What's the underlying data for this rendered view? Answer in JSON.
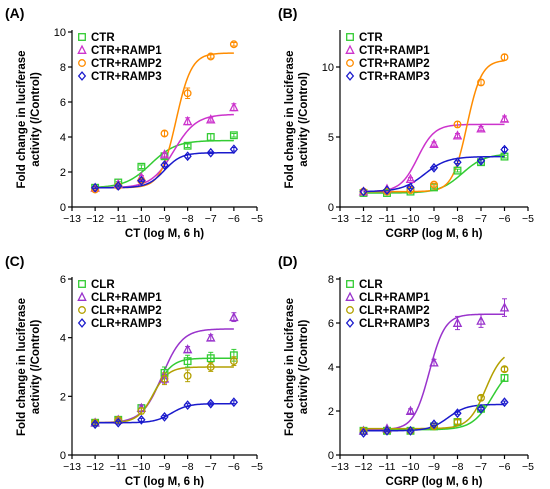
{
  "chart_data": [
    {
      "panel": "(A)",
      "type": "scatter",
      "xlabel": "CT (log M, 6 h)",
      "ylabel_lines": [
        "Fold change in luciferase",
        "activity (/Control)"
      ],
      "xlim": [
        -13,
        -5
      ],
      "ylim": [
        0,
        10
      ],
      "xticks": [
        -13,
        -12,
        -11,
        -10,
        -9,
        -8,
        -7,
        -6,
        -5
      ],
      "yticks": [
        0,
        2,
        4,
        6,
        8,
        10
      ],
      "x": [
        -12,
        -11,
        -10,
        -9,
        -8,
        -7,
        -6
      ],
      "legend_position": "top-left",
      "series": [
        {
          "name": "CTR",
          "marker": "square",
          "color": "#33cc33",
          "values": [
            1.1,
            1.4,
            2.3,
            2.9,
            3.5,
            4.0,
            4.1
          ],
          "error": [
            0.05,
            0.05,
            0.1,
            0.15,
            0.1,
            0.2,
            0.1
          ],
          "fit": {
            "bottom": 1.1,
            "top": 3.8,
            "ec50": -9.6,
            "hill": 0.8
          }
        },
        {
          "name": "CTR+RAMP1",
          "marker": "triangle-up",
          "color": "#cc33cc",
          "values": [
            1.1,
            1.3,
            1.7,
            3.0,
            4.9,
            5.0,
            5.7
          ],
          "error": [
            0.05,
            0.05,
            0.1,
            0.1,
            0.2,
            0.1,
            0.2
          ],
          "fit": {
            "bottom": 1.1,
            "top": 5.3,
            "ec50": -8.6,
            "hill": 0.9
          }
        },
        {
          "name": "CTR+RAMP2",
          "marker": "circle",
          "color": "#ff8c00",
          "values": [
            1.0,
            1.2,
            1.5,
            4.2,
            6.5,
            8.6,
            9.3
          ],
          "error": [
            0.05,
            0.05,
            0.1,
            0.15,
            0.3,
            0.1,
            0.1
          ],
          "fit": {
            "bottom": 1.1,
            "top": 8.8,
            "ec50": -8.5,
            "hill": 1.3
          }
        },
        {
          "name": "CTR+RAMP3",
          "marker": "diamond",
          "color": "#1a1acc",
          "values": [
            1.1,
            1.2,
            1.5,
            2.4,
            2.9,
            3.1,
            3.3
          ],
          "error": [
            0.05,
            0.05,
            0.05,
            0.1,
            0.1,
            0.05,
            0.1
          ],
          "fit": {
            "bottom": 1.1,
            "top": 3.1,
            "ec50": -9.0,
            "hill": 1.2
          }
        }
      ]
    },
    {
      "panel": "(B)",
      "type": "scatter",
      "xlabel": "CGRP (log M, 6 h)",
      "ylabel_lines": [
        "Fold change in luciferase",
        "activity (/Control)"
      ],
      "xlim": [
        -13,
        -5
      ],
      "ylim": [
        0,
        12.5
      ],
      "xticks": [
        -13,
        -12,
        -11,
        -10,
        -9,
        -8,
        -7,
        -6,
        -5
      ],
      "yticks": [
        0,
        5,
        10
      ],
      "x": [
        -12,
        -11,
        -10,
        -9,
        -8,
        -7,
        -6
      ],
      "legend_position": "top-left",
      "series": [
        {
          "name": "CTR",
          "marker": "square",
          "color": "#33cc33",
          "values": [
            1.0,
            1.0,
            1.1,
            1.4,
            2.6,
            3.2,
            3.6
          ],
          "error": [
            0.05,
            0.05,
            0.05,
            0.1,
            0.1,
            0.2,
            0.1
          ],
          "fit": {
            "bottom": 1.0,
            "top": 3.8,
            "ec50": -7.8,
            "hill": 0.9
          }
        },
        {
          "name": "CTR+RAMP1",
          "marker": "triangle-up",
          "color": "#cc33cc",
          "values": [
            1.1,
            1.3,
            2.0,
            4.5,
            5.1,
            5.6,
            6.3
          ],
          "error": [
            0.05,
            0.05,
            0.1,
            0.15,
            0.15,
            0.15,
            0.2
          ],
          "fit": {
            "bottom": 1.1,
            "top": 5.9,
            "ec50": -9.7,
            "hill": 1.2
          }
        },
        {
          "name": "CTR+RAMP2",
          "marker": "circle",
          "color": "#ff8c00",
          "values": [
            1.1,
            1.1,
            1.2,
            1.6,
            5.9,
            8.9,
            10.7
          ],
          "error": [
            0.05,
            0.05,
            0.05,
            0.1,
            0.2,
            0.2,
            0.2
          ],
          "fit": {
            "bottom": 1.1,
            "top": 10.5,
            "ec50": -7.6,
            "hill": 1.4
          }
        },
        {
          "name": "CTR+RAMP3",
          "marker": "diamond",
          "color": "#1a1acc",
          "values": [
            1.1,
            1.2,
            1.4,
            2.8,
            3.2,
            3.3,
            4.1
          ],
          "error": [
            0.05,
            0.05,
            0.1,
            0.1,
            0.1,
            0.1,
            0.15
          ],
          "fit": {
            "bottom": 1.1,
            "top": 3.6,
            "ec50": -9.4,
            "hill": 0.9
          }
        }
      ]
    },
    {
      "panel": "(C)",
      "type": "scatter",
      "xlabel": "CT (log M, 6 h)",
      "ylabel_lines": [
        "Fold change in luciferase",
        "activity (/Control)"
      ],
      "xlim": [
        -13,
        -5
      ],
      "ylim": [
        0,
        6
      ],
      "xticks": [
        -13,
        -12,
        -11,
        -10,
        -9,
        -8,
        -7,
        -6,
        -5
      ],
      "yticks": [
        0,
        2,
        4,
        6
      ],
      "x": [
        -12,
        -11,
        -10,
        -9,
        -8,
        -7,
        -6
      ],
      "legend_position": "top-left",
      "series": [
        {
          "name": "CLR",
          "marker": "square",
          "color": "#33cc33",
          "values": [
            1.1,
            1.2,
            1.6,
            2.8,
            3.2,
            3.3,
            3.4
          ],
          "error": [
            0.05,
            0.05,
            0.1,
            0.2,
            0.2,
            0.2,
            0.2
          ],
          "fit": {
            "bottom": 1.1,
            "top": 3.3,
            "ec50": -9.4,
            "hill": 1.2
          }
        },
        {
          "name": "CLR+RAMP1",
          "marker": "triangle-up",
          "color": "#9933cc",
          "values": [
            1.1,
            1.2,
            1.6,
            2.6,
            3.6,
            4.0,
            4.7
          ],
          "error": [
            0.05,
            0.05,
            0.1,
            0.15,
            0.1,
            0.1,
            0.15
          ],
          "fit": {
            "bottom": 1.1,
            "top": 4.3,
            "ec50": -9.1,
            "hill": 1.0
          }
        },
        {
          "name": "CLR+RAMP2",
          "marker": "circle",
          "color": "#b3a000",
          "values": [
            1.1,
            1.2,
            1.5,
            2.6,
            2.7,
            3.0,
            3.2
          ],
          "error": [
            0.05,
            0.05,
            0.1,
            0.2,
            0.2,
            0.15,
            0.15
          ],
          "fit": {
            "bottom": 1.1,
            "top": 3.0,
            "ec50": -9.5,
            "hill": 1.3
          }
        },
        {
          "name": "CLR+RAMP3",
          "marker": "diamond",
          "color": "#1a1acc",
          "values": [
            1.05,
            1.1,
            1.2,
            1.3,
            1.7,
            1.75,
            1.8
          ],
          "error": [
            0.05,
            0.05,
            0.05,
            0.05,
            0.05,
            0.05,
            0.05
          ],
          "fit": {
            "bottom": 1.1,
            "top": 1.75,
            "ec50": -8.7,
            "hill": 1.2
          }
        }
      ]
    },
    {
      "panel": "(D)",
      "type": "scatter",
      "xlabel": "CGRP (log M, 6 h)",
      "ylabel_lines": [
        "Fold change in luciferase",
        "activity (/Control)"
      ],
      "xlim": [
        -13,
        -5
      ],
      "ylim": [
        0,
        8
      ],
      "xticks": [
        -13,
        -12,
        -11,
        -10,
        -9,
        -8,
        -7,
        -6,
        -5
      ],
      "yticks": [
        0,
        2,
        4,
        6,
        8
      ],
      "x": [
        -12,
        -11,
        -10,
        -9,
        -8,
        -7,
        -6
      ],
      "legend_position": "top-left",
      "series": [
        {
          "name": "CLR",
          "marker": "square",
          "color": "#33cc33",
          "values": [
            1.1,
            1.1,
            1.1,
            1.3,
            1.5,
            2.1,
            3.5
          ],
          "error": [
            0.05,
            0.05,
            0.05,
            0.05,
            0.1,
            0.1,
            0.15
          ],
          "fit": {
            "bottom": 1.15,
            "top": 4.2,
            "ec50": -6.5,
            "hill": 1.0
          }
        },
        {
          "name": "CLR+RAMP1",
          "marker": "triangle-up",
          "color": "#9933cc",
          "values": [
            1.1,
            1.2,
            2.0,
            4.2,
            6.0,
            6.1,
            6.7
          ],
          "error": [
            0.05,
            0.05,
            0.1,
            0.15,
            0.3,
            0.3,
            0.4
          ],
          "fit": {
            "bottom": 1.15,
            "top": 6.4,
            "ec50": -9.2,
            "hill": 1.3
          }
        },
        {
          "name": "CLR+RAMP2",
          "marker": "circle",
          "color": "#b3a000",
          "values": [
            1.1,
            1.1,
            1.1,
            1.3,
            1.5,
            2.6,
            3.9
          ],
          "error": [
            0.05,
            0.05,
            0.05,
            0.05,
            0.1,
            0.1,
            0.1
          ],
          "fit": {
            "bottom": 1.2,
            "top": 4.8,
            "ec50": -6.8,
            "hill": 1.2
          }
        },
        {
          "name": "CLR+RAMP3",
          "marker": "diamond",
          "color": "#1a1acc",
          "values": [
            1.0,
            1.1,
            1.1,
            1.4,
            1.9,
            2.1,
            2.4
          ],
          "error": [
            0.05,
            0.05,
            0.05,
            0.05,
            0.05,
            0.05,
            0.05
          ],
          "fit": {
            "bottom": 1.1,
            "top": 2.3,
            "ec50": -8.4,
            "hill": 1.1
          }
        }
      ]
    }
  ]
}
